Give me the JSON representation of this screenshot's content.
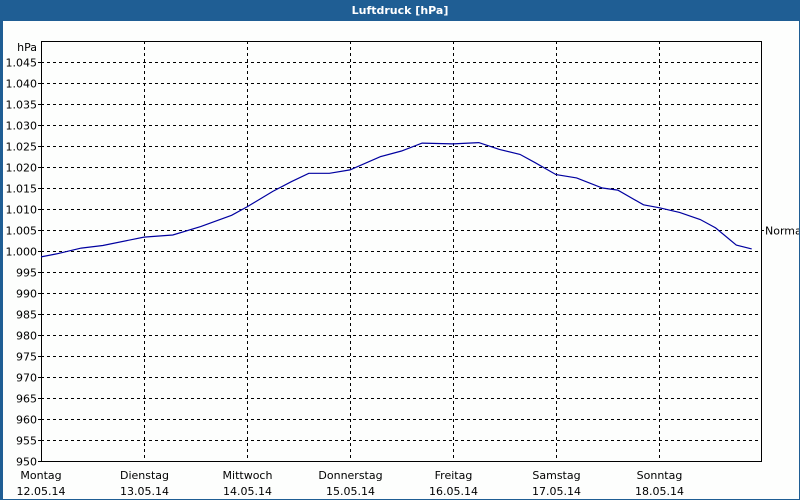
{
  "window": {
    "title": "Luftdruck [hPa]"
  },
  "chart_data": {
    "type": "line",
    "title": "Luftdruck [hPa]",
    "ylabel": "hPa",
    "xlabel": "",
    "ylim": [
      950,
      1050
    ],
    "yticks": [
      "950",
      "955",
      "960",
      "965",
      "970",
      "975",
      "980",
      "985",
      "990",
      "995",
      "1.000",
      "1.005",
      "1.010",
      "1.015",
      "1.020",
      "1.025",
      "1.030",
      "1.035",
      "1.040",
      "1.045"
    ],
    "ytick_values": [
      950,
      955,
      960,
      965,
      970,
      975,
      980,
      985,
      990,
      995,
      1000,
      1005,
      1010,
      1015,
      1020,
      1025,
      1030,
      1035,
      1040,
      1045
    ],
    "categories": [
      {
        "day": "Montag",
        "date": "12.05.14"
      },
      {
        "day": "Dienstag",
        "date": "13.05.14"
      },
      {
        "day": "Mittwoch",
        "date": "14.05.14"
      },
      {
        "day": "Donnerstag",
        "date": "15.05.14"
      },
      {
        "day": "Freitag",
        "date": "16.05.14"
      },
      {
        "day": "Samstag",
        "date": "17.05.14"
      },
      {
        "day": "Sonntag",
        "date": "18.05.14"
      }
    ],
    "grid": true,
    "reference_line": {
      "label": "Normal",
      "value": 1005
    },
    "series": [
      {
        "name": "Luftdruck",
        "color": "#0000a0",
        "x_days": [
          0,
          0.15,
          0.39,
          0.6,
          1.0,
          1.28,
          1.55,
          1.85,
          2.0,
          2.25,
          2.43,
          2.6,
          2.8,
          3.0,
          3.3,
          3.5,
          3.7,
          4.0,
          4.25,
          4.45,
          4.65,
          4.8,
          5.0,
          5.2,
          5.45,
          5.6,
          5.85,
          6.0,
          6.2,
          6.4,
          6.55,
          6.75,
          6.9
        ],
        "values": [
          998.6,
          999.3,
          1000.7,
          1001.3,
          1003.3,
          1003.8,
          1005.8,
          1008.5,
          1010.5,
          1014.2,
          1016.5,
          1018.5,
          1018.5,
          1019.3,
          1022.5,
          1023.8,
          1025.7,
          1025.5,
          1025.8,
          1024.2,
          1023.0,
          1021.0,
          1018.2,
          1017.4,
          1015.0,
          1014.5,
          1011.0,
          1010.3,
          1009.2,
          1007.5,
          1005.5,
          1001.4,
          1000.5
        ]
      }
    ]
  }
}
